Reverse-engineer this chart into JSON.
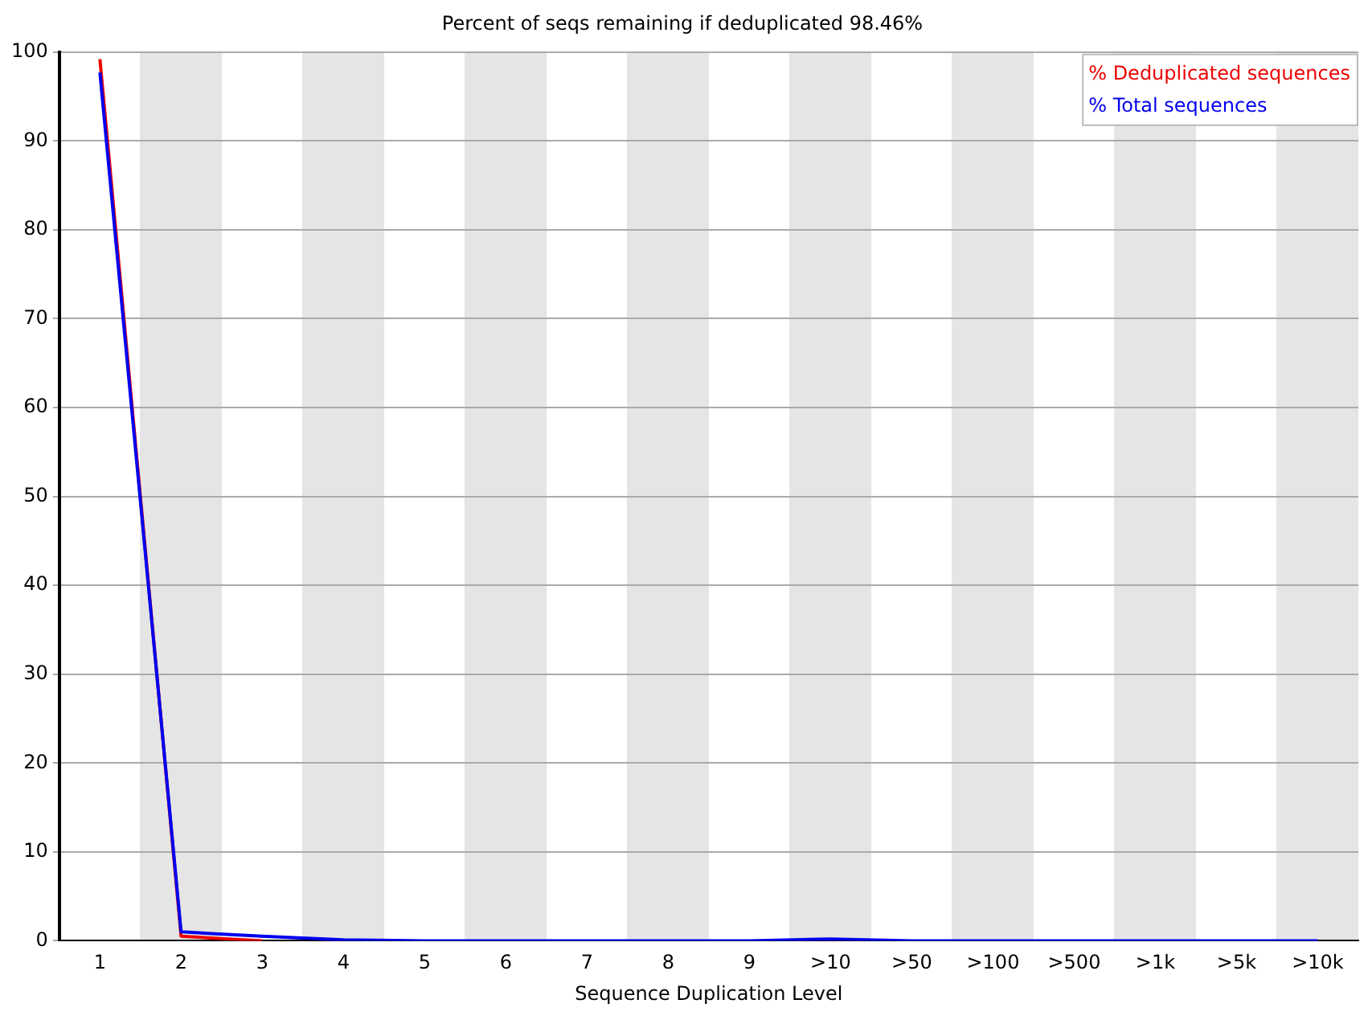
{
  "chart_data": {
    "type": "line",
    "title": "Percent of seqs remaining if deduplicated 98.46%",
    "xlabel": "Sequence Duplication Level",
    "categories": [
      "1",
      "2",
      "3",
      "4",
      "5",
      "6",
      "7",
      "8",
      "9",
      ">10",
      ">50",
      ">100",
      ">500",
      ">1k",
      ">5k",
      ">10k"
    ],
    "series": [
      {
        "name": "% Deduplicated sequences",
        "color": "#ee0000",
        "values": [
          99.2,
          0.5,
          0,
          null,
          null,
          null,
          null,
          null,
          null,
          null,
          null,
          null,
          null,
          null,
          null,
          null
        ]
      },
      {
        "name": "% Total sequences",
        "color": "#0000ee",
        "values": [
          97.7,
          1.0,
          0.5,
          0.1,
          0,
          0,
          0,
          0,
          0,
          0.2,
          0,
          0,
          0,
          0,
          0,
          0
        ]
      }
    ],
    "ylim": [
      0,
      100
    ],
    "yticks": [
      0,
      10,
      20,
      30,
      40,
      50,
      60,
      70,
      80,
      90,
      100
    ],
    "grid": "y",
    "legend": "top right",
    "marker": "none",
    "line_style": "solid"
  }
}
